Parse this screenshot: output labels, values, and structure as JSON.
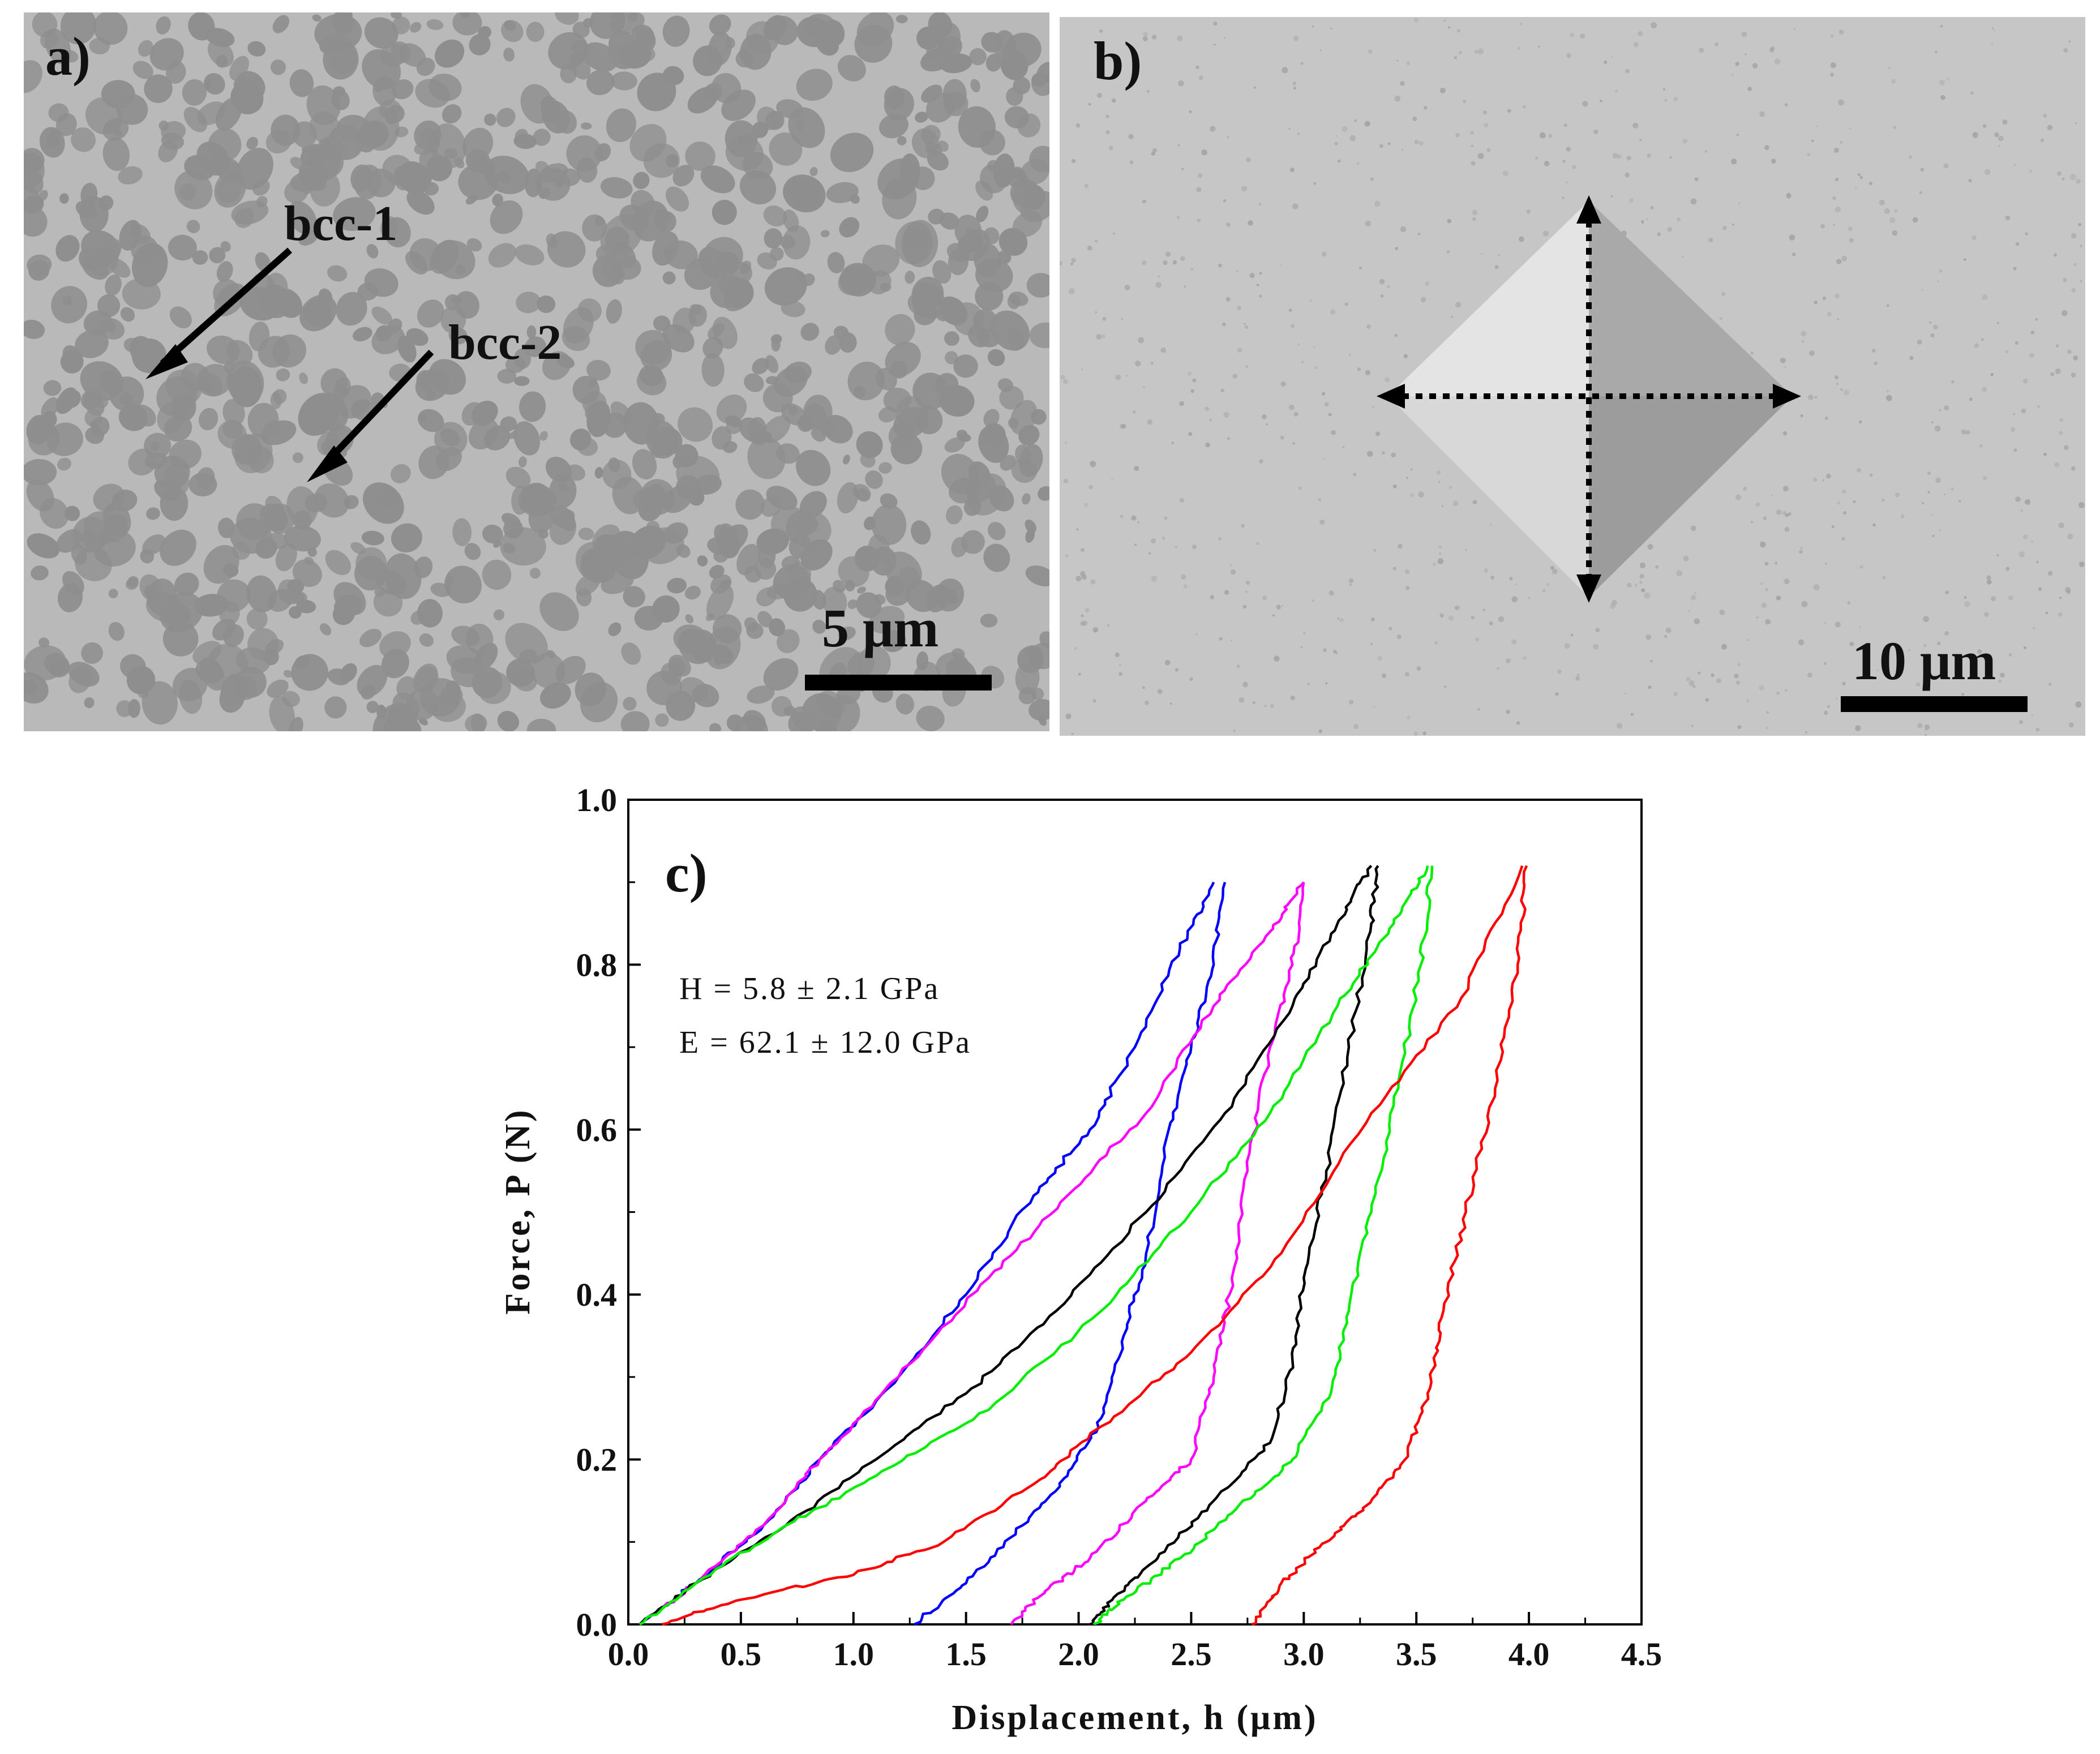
{
  "panel_a": {
    "label": "a)",
    "arrow_label_1": "bcc-1",
    "arrow_label_2": "bcc-2",
    "scale_bar_label": "5 μm"
  },
  "panel_b": {
    "label": "b)",
    "scale_bar_label": "10 μm"
  },
  "colors": {
    "sem_background": "#b9b9b9",
    "sem_dark_phase": "#8e8e8e",
    "series_blue": "#0000ff",
    "series_magenta": "#ff00ff",
    "series_black": "#000000",
    "series_green": "#00ee00",
    "series_red": "#ff0000"
  },
  "chart_data": {
    "type": "line",
    "panel_label": "c)",
    "xlabel": "Displacement, h (μm)",
    "ylabel": "Force, P (N)",
    "xlim": [
      0.0,
      4.5
    ],
    "ylim": [
      0.0,
      1.0
    ],
    "x_ticks": [
      "0.0",
      "0.5",
      "1.0",
      "1.5",
      "2.0",
      "2.5",
      "3.0",
      "3.5",
      "4.0",
      "4.5"
    ],
    "y_ticks": [
      "0.0",
      "0.2",
      "0.4",
      "0.6",
      "0.8",
      "1.0"
    ],
    "annotations": [
      "H = 5.8 ± 2.1 GPa",
      "E = 62.1 ± 12.0 GPa"
    ],
    "grid": false,
    "legend": "none",
    "series": [
      {
        "color": "blue",
        "loading": [
          [
            0.05,
            0.0
          ],
          [
            0.3,
            0.05
          ],
          [
            0.6,
            0.12
          ],
          [
            0.85,
            0.2
          ],
          [
            1.2,
            0.3
          ],
          [
            1.5,
            0.4
          ],
          [
            1.8,
            0.52
          ],
          [
            2.05,
            0.6
          ],
          [
            2.25,
            0.7
          ],
          [
            2.45,
            0.82
          ],
          [
            2.6,
            0.9
          ]
        ],
        "unloading": [
          [
            2.65,
            0.9
          ],
          [
            2.6,
            0.8
          ],
          [
            2.5,
            0.7
          ],
          [
            2.4,
            0.6
          ],
          [
            2.3,
            0.45
          ],
          [
            2.2,
            0.35
          ],
          [
            2.1,
            0.25
          ],
          [
            1.95,
            0.18
          ],
          [
            1.75,
            0.12
          ],
          [
            1.5,
            0.05
          ],
          [
            1.27,
            0.0
          ]
        ]
      },
      {
        "color": "magenta",
        "loading": [
          [
            0.05,
            0.0
          ],
          [
            0.3,
            0.05
          ],
          [
            0.6,
            0.12
          ],
          [
            0.85,
            0.2
          ],
          [
            1.2,
            0.3
          ],
          [
            1.6,
            0.42
          ],
          [
            1.95,
            0.52
          ],
          [
            2.3,
            0.62
          ],
          [
            2.6,
            0.75
          ],
          [
            2.85,
            0.84
          ],
          [
            3.0,
            0.9
          ]
        ],
        "unloading": [
          [
            3.0,
            0.9
          ],
          [
            2.95,
            0.8
          ],
          [
            2.85,
            0.7
          ],
          [
            2.75,
            0.55
          ],
          [
            2.67,
            0.4
          ],
          [
            2.6,
            0.3
          ],
          [
            2.5,
            0.2
          ],
          [
            2.3,
            0.15
          ],
          [
            2.05,
            0.08
          ],
          [
            1.85,
            0.04
          ],
          [
            1.7,
            0.0
          ]
        ]
      },
      {
        "color": "black",
        "loading": [
          [
            0.05,
            0.0
          ],
          [
            0.3,
            0.05
          ],
          [
            0.7,
            0.12
          ],
          [
            1.1,
            0.2
          ],
          [
            1.5,
            0.28
          ],
          [
            1.9,
            0.38
          ],
          [
            2.3,
            0.5
          ],
          [
            2.65,
            0.62
          ],
          [
            2.95,
            0.75
          ],
          [
            3.15,
            0.85
          ],
          [
            3.3,
            0.92
          ]
        ],
        "unloading": [
          [
            3.33,
            0.92
          ],
          [
            3.3,
            0.85
          ],
          [
            3.2,
            0.7
          ],
          [
            3.1,
            0.55
          ],
          [
            3.0,
            0.42
          ],
          [
            2.95,
            0.32
          ],
          [
            2.85,
            0.22
          ],
          [
            2.6,
            0.15
          ],
          [
            2.35,
            0.08
          ],
          [
            2.15,
            0.03
          ],
          [
            2.05,
            0.0
          ]
        ]
      },
      {
        "color": "green",
        "loading": [
          [
            0.05,
            0.0
          ],
          [
            0.3,
            0.05
          ],
          [
            0.7,
            0.12
          ],
          [
            1.1,
            0.18
          ],
          [
            1.6,
            0.26
          ],
          [
            2.1,
            0.38
          ],
          [
            2.5,
            0.5
          ],
          [
            2.85,
            0.62
          ],
          [
            3.15,
            0.75
          ],
          [
            3.4,
            0.85
          ],
          [
            3.55,
            0.92
          ]
        ],
        "unloading": [
          [
            3.57,
            0.92
          ],
          [
            3.52,
            0.8
          ],
          [
            3.42,
            0.65
          ],
          [
            3.3,
            0.5
          ],
          [
            3.2,
            0.38
          ],
          [
            3.12,
            0.28
          ],
          [
            2.95,
            0.2
          ],
          [
            2.7,
            0.14
          ],
          [
            2.45,
            0.08
          ],
          [
            2.2,
            0.03
          ],
          [
            2.07,
            0.0
          ]
        ]
      },
      {
        "color": "red",
        "loading": [
          [
            0.15,
            0.0
          ],
          [
            0.5,
            0.03
          ],
          [
            1.0,
            0.06
          ],
          [
            1.4,
            0.1
          ],
          [
            1.8,
            0.17
          ],
          [
            2.1,
            0.24
          ],
          [
            2.5,
            0.33
          ],
          [
            2.9,
            0.45
          ],
          [
            3.3,
            0.62
          ],
          [
            3.7,
            0.76
          ],
          [
            3.97,
            0.92
          ]
        ],
        "unloading": [
          [
            3.99,
            0.92
          ],
          [
            3.95,
            0.8
          ],
          [
            3.85,
            0.65
          ],
          [
            3.72,
            0.5
          ],
          [
            3.62,
            0.38
          ],
          [
            3.55,
            0.28
          ],
          [
            3.45,
            0.2
          ],
          [
            3.3,
            0.15
          ],
          [
            3.1,
            0.1
          ],
          [
            2.9,
            0.05
          ],
          [
            2.77,
            0.0
          ]
        ]
      }
    ]
  }
}
